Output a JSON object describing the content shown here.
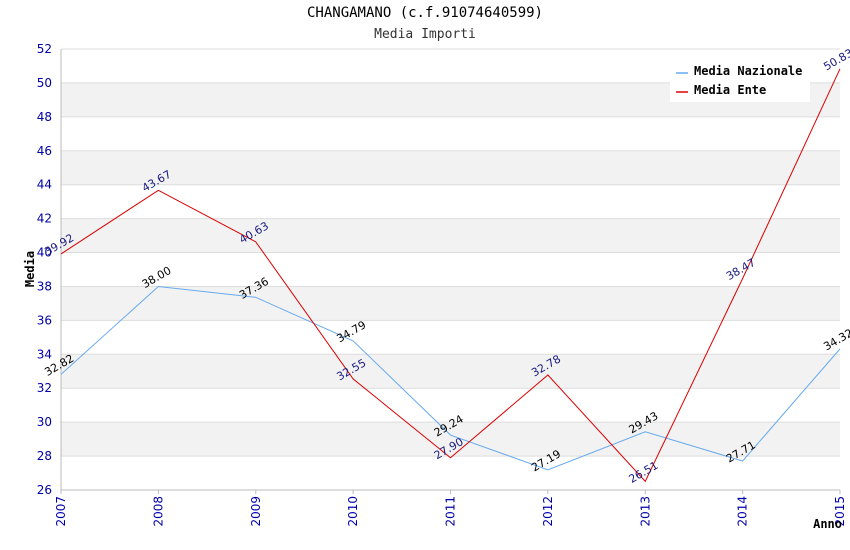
{
  "chart_data": {
    "type": "line",
    "title": "CHANGAMANO (c.f.91074640599)",
    "subtitle": "Media Importi",
    "xlabel": "Anno",
    "ylabel": "Media",
    "x": [
      "2007",
      "2008",
      "2009",
      "2010",
      "2011",
      "2012",
      "2013",
      "2014",
      "2015"
    ],
    "ylim": [
      26,
      52
    ],
    "yticks": [
      26,
      28,
      30,
      32,
      34,
      36,
      38,
      40,
      42,
      44,
      46,
      48,
      50,
      52
    ],
    "grid": true,
    "legend_position": "top-right",
    "series": [
      {
        "name": "Media Nazionale",
        "color": "#66aaee",
        "values": [
          32.82,
          38.0,
          37.36,
          34.79,
          29.24,
          27.19,
          29.43,
          27.71,
          34.32
        ],
        "labels": [
          "32.82",
          "38.00",
          "37.36",
          "34.79",
          "29.24",
          "27.19",
          "29.43",
          "27.71",
          "34.32"
        ]
      },
      {
        "name": "Media Ente",
        "color": "#dd0000",
        "values": [
          39.92,
          43.67,
          40.63,
          32.55,
          27.9,
          32.78,
          26.51,
          38.47,
          50.83
        ],
        "labels": [
          "39.92",
          "43.67",
          "40.63",
          "32.55",
          "27.90",
          "32.78",
          "26.51",
          "38.47",
          "50.83"
        ]
      }
    ]
  }
}
